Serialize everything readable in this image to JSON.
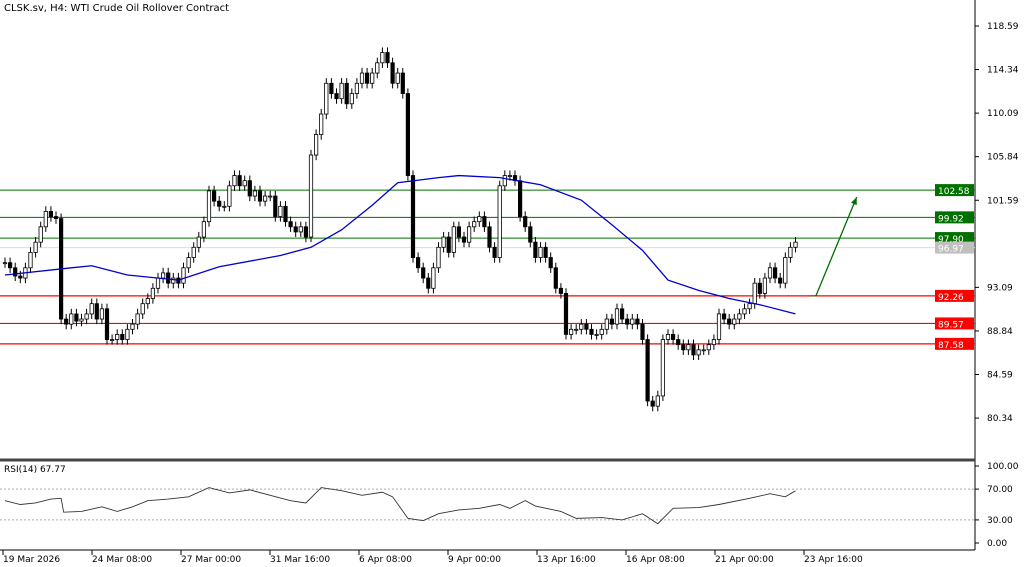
{
  "header": {
    "title": "CLSK.sv, H4:  WTI Crude Oil Rollover Contract"
  },
  "chart_data": {
    "type": "candlestick",
    "price_axis": {
      "ticks": [
        "118.59",
        "114.34",
        "110.09",
        "105.84",
        "101.59",
        "93.09",
        "88.84",
        "84.59",
        "80.34"
      ],
      "range": [
        78.5,
        120.5
      ]
    },
    "time_axis": {
      "ticks": [
        "19 Mar 2026",
        "24 Mar 08:00",
        "27 Mar 00:00",
        "31 Mar 16:00",
        "6 Apr 08:00",
        "9 Apr 00:00",
        "13 Apr 16:00",
        "16 Apr 08:00",
        "21 Apr 00:00",
        "23 Apr 16:00"
      ],
      "tick_every_candles": 17.5
    },
    "closes": [
      95.5,
      95,
      94.2,
      94,
      95,
      96.5,
      97.5,
      99,
      100.5,
      100,
      99.8,
      90,
      89.5,
      90.5,
      89.8,
      90,
      90.5,
      91.5,
      90,
      91,
      88,
      88,
      88.5,
      88,
      89,
      89.5,
      90.5,
      91.5,
      92,
      93,
      94,
      94.5,
      93.5,
      94,
      93.5,
      95,
      96,
      97,
      98,
      99.5,
      102.5,
      101.5,
      101,
      101,
      103,
      104,
      103,
      103.5,
      102,
      102.5,
      101.5,
      102,
      102,
      100,
      101,
      99.5,
      99,
      98.5,
      99,
      98,
      106,
      108,
      110,
      113,
      112,
      111.5,
      113,
      111,
      112,
      113,
      114,
      113,
      114,
      115,
      116,
      115,
      113,
      114,
      112,
      104,
      96,
      95,
      94,
      93,
      95,
      97,
      98,
      96.5,
      99,
      98,
      97.5,
      99,
      99.5,
      100,
      99,
      97,
      96,
      103,
      104,
      104,
      103.5,
      100,
      99,
      97.5,
      96,
      97,
      96,
      95,
      93,
      92.5,
      88.5,
      89,
      89,
      89.5,
      89,
      88.5,
      88.5,
      89,
      90,
      89.5,
      91,
      90,
      89.5,
      90,
      89.5,
      88,
      82,
      81.5,
      82.5,
      88,
      88.5,
      88,
      87.5,
      87,
      87.5,
      86.5,
      87,
      87,
      87.5,
      88,
      90.5,
      90,
      89.5,
      90,
      90.5,
      91,
      91.5,
      93.5,
      92.5,
      94,
      95,
      94,
      93.5,
      96,
      97,
      97.5
    ],
    "moving_average": {
      "color": "#0000cc",
      "points": [
        [
          0,
          94.3
        ],
        [
          13,
          95
        ],
        [
          17,
          95.2
        ],
        [
          24,
          94.3
        ],
        [
          34,
          93.8
        ],
        [
          42,
          95.1
        ],
        [
          54,
          96.2
        ],
        [
          60,
          97
        ],
        [
          66,
          98.7
        ],
        [
          72,
          101.1
        ],
        [
          77,
          103.3
        ],
        [
          85,
          103.8
        ],
        [
          89,
          104
        ],
        [
          97,
          103.8
        ],
        [
          105,
          103.1
        ],
        [
          113,
          101.6
        ],
        [
          119,
          99.2
        ],
        [
          125,
          96.7
        ],
        [
          130,
          93.8
        ],
        [
          136,
          92.8
        ],
        [
          142,
          92
        ],
        [
          148,
          91.4
        ],
        [
          155,
          90.5
        ]
      ]
    },
    "levels": [
      {
        "value": "102.58",
        "color": "#007000"
      },
      {
        "value": "99.92",
        "color": "#007000"
      },
      {
        "value": "97.90",
        "color": "#007000"
      },
      {
        "value": "92.26",
        "color": "#ff0000"
      },
      {
        "value": "89.57",
        "color": "#ff0000"
      },
      {
        "value": "87.58",
        "color": "#ff0000"
      }
    ],
    "current_price": {
      "value": "96.97",
      "color": "#c0c0c0"
    },
    "arrow": {
      "from": [
        159,
        92.26
      ],
      "to": [
        167,
        101.9
      ],
      "color": "#007000"
    },
    "rsi": {
      "label": "RSI(14) 67.77",
      "ticks": [
        "100.00",
        "70.00",
        "30.00",
        "0.00"
      ],
      "levels": [
        70,
        30
      ],
      "points": [
        [
          0,
          55
        ],
        [
          3,
          50
        ],
        [
          6,
          52
        ],
        [
          9,
          57
        ],
        [
          11,
          58
        ],
        [
          11.5,
          40
        ],
        [
          15,
          41
        ],
        [
          19,
          47
        ],
        [
          22,
          41
        ],
        [
          25,
          47
        ],
        [
          28,
          55
        ],
        [
          32,
          57
        ],
        [
          36,
          60
        ],
        [
          40,
          72
        ],
        [
          44,
          65
        ],
        [
          48,
          69
        ],
        [
          52,
          62
        ],
        [
          56,
          55
        ],
        [
          59,
          52
        ],
        [
          62,
          72
        ],
        [
          66,
          68
        ],
        [
          70,
          62
        ],
        [
          74,
          66
        ],
        [
          76,
          60
        ],
        [
          79,
          32
        ],
        [
          82,
          29
        ],
        [
          85,
          38
        ],
        [
          89,
          43
        ],
        [
          93,
          45
        ],
        [
          97,
          50
        ],
        [
          99,
          45
        ],
        [
          102,
          55
        ],
        [
          104,
          48
        ],
        [
          109,
          41
        ],
        [
          112,
          32
        ],
        [
          117,
          33
        ],
        [
          121,
          30
        ],
        [
          125,
          38
        ],
        [
          128,
          25
        ],
        [
          131,
          45
        ],
        [
          136,
          46
        ],
        [
          140,
          50
        ],
        [
          146,
          58
        ],
        [
          150,
          64
        ],
        [
          153,
          60
        ],
        [
          155,
          67.77
        ]
      ]
    }
  }
}
